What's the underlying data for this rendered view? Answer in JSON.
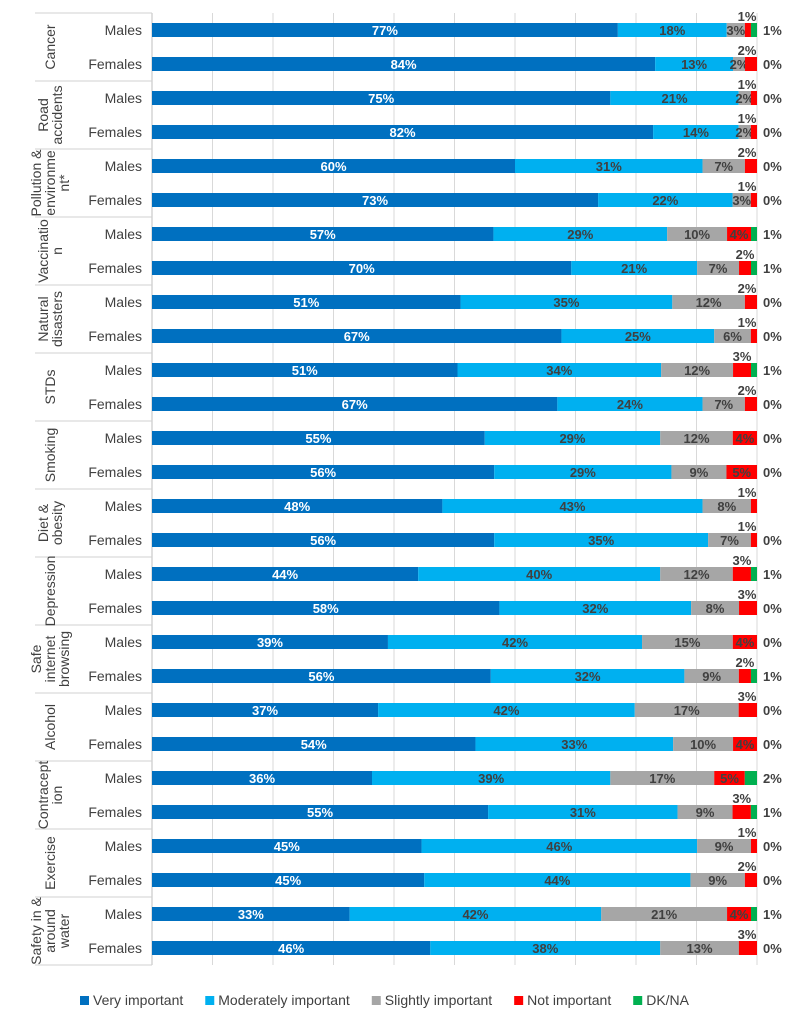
{
  "chart_data": {
    "type": "bar",
    "orientation": "horizontal-stacked-100",
    "xlim": [
      0,
      100
    ],
    "grid": true,
    "legend_position": "bottom",
    "colors": [
      "#0070C0",
      "#00B0F0",
      "#A6A6A6",
      "#FF0000",
      "#00B050"
    ],
    "series_names": [
      "Very important",
      "Moderately important",
      "Slightly important",
      "Not important",
      "DK/NA"
    ],
    "groups": [
      {
        "label": [
          "Cancer"
        ],
        "rows": [
          {
            "sub": "Males",
            "values": [
              77,
              18,
              3,
              1,
              1
            ]
          },
          {
            "sub": "Females",
            "values": [
              84,
              13,
              2,
              2,
              0
            ]
          }
        ]
      },
      {
        "label": [
          "Road",
          "accidents"
        ],
        "rows": [
          {
            "sub": "Males",
            "values": [
              75,
              21,
              2,
              1,
              0
            ]
          },
          {
            "sub": "Females",
            "values": [
              82,
              14,
              2,
              1,
              0
            ]
          }
        ]
      },
      {
        "label": [
          "Pollution &",
          "environme",
          "nt*"
        ],
        "rows": [
          {
            "sub": "Males",
            "values": [
              60,
              31,
              7,
              2,
              0
            ]
          },
          {
            "sub": "Females",
            "values": [
              73,
              22,
              3,
              1,
              0
            ]
          }
        ]
      },
      {
        "label": [
          "Vaccinatio",
          "n"
        ],
        "rows": [
          {
            "sub": "Males",
            "values": [
              57,
              29,
              10,
              4,
              1
            ]
          },
          {
            "sub": "Females",
            "values": [
              70,
              21,
              7,
              2,
              1
            ]
          }
        ]
      },
      {
        "label": [
          "Natural",
          "disasters"
        ],
        "rows": [
          {
            "sub": "Males",
            "values": [
              51,
              35,
              12,
              2,
              0
            ]
          },
          {
            "sub": "Females",
            "values": [
              67,
              25,
              6,
              1,
              0
            ]
          }
        ]
      },
      {
        "label": [
          "STDs"
        ],
        "rows": [
          {
            "sub": "Males",
            "values": [
              51,
              34,
              12,
              3,
              1
            ]
          },
          {
            "sub": "Females",
            "values": [
              67,
              24,
              7,
              2,
              0
            ]
          }
        ]
      },
      {
        "label": [
          "Smoking"
        ],
        "rows": [
          {
            "sub": "Males",
            "values": [
              55,
              29,
              12,
              4,
              0
            ]
          },
          {
            "sub": "Females",
            "values": [
              56,
              29,
              9,
              5,
              0
            ]
          }
        ]
      },
      {
        "label": [
          "Diet &",
          "obesity"
        ],
        "rows": [
          {
            "sub": "Males",
            "values": [
              48,
              43,
              8,
              1,
              null
            ]
          },
          {
            "sub": "Females",
            "values": [
              56,
              35,
              7,
              1,
              0
            ]
          }
        ]
      },
      {
        "label": [
          "Depression"
        ],
        "rows": [
          {
            "sub": "Males",
            "values": [
              44,
              40,
              12,
              3,
              1
            ]
          },
          {
            "sub": "Females",
            "values": [
              58,
              32,
              8,
              3,
              0
            ]
          }
        ]
      },
      {
        "label": [
          "Safe",
          "internet",
          "browsing"
        ],
        "rows": [
          {
            "sub": "Males",
            "values": [
              39,
              42,
              15,
              4,
              0
            ]
          },
          {
            "sub": "Females",
            "values": [
              56,
              32,
              9,
              2,
              1
            ]
          }
        ]
      },
      {
        "label": [
          "Alcohol"
        ],
        "rows": [
          {
            "sub": "Males",
            "values": [
              37,
              42,
              17,
              3,
              0
            ]
          },
          {
            "sub": "Females",
            "values": [
              54,
              33,
              10,
              4,
              0
            ]
          }
        ]
      },
      {
        "label": [
          "Contracept",
          "ion"
        ],
        "rows": [
          {
            "sub": "Males",
            "values": [
              36,
              39,
              17,
              5,
              2
            ]
          },
          {
            "sub": "Females",
            "values": [
              55,
              31,
              9,
              3,
              1
            ]
          }
        ]
      },
      {
        "label": [
          "Exercise"
        ],
        "rows": [
          {
            "sub": "Males",
            "values": [
              45,
              46,
              9,
              1,
              0
            ]
          },
          {
            "sub": "Females",
            "values": [
              45,
              44,
              9,
              2,
              0
            ]
          }
        ]
      },
      {
        "label": [
          "Safety in &",
          "around",
          "water"
        ],
        "rows": [
          {
            "sub": "Males",
            "values": [
              33,
              42,
              21,
              4,
              1
            ]
          },
          {
            "sub": "Females",
            "values": [
              46,
              38,
              13,
              3,
              0
            ]
          }
        ]
      }
    ]
  }
}
